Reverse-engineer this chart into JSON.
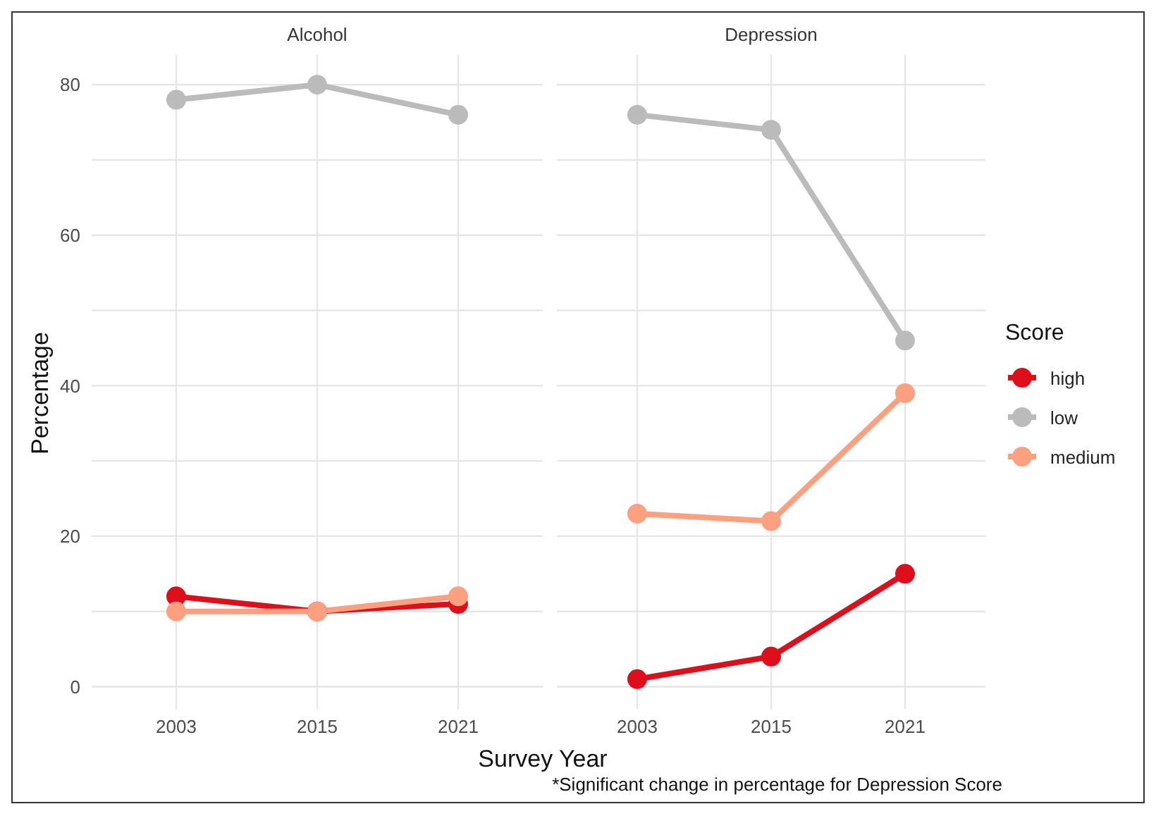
{
  "chart_data": [
    {
      "type": "line",
      "title": "Alcohol",
      "xlabel": "Survey Year",
      "ylabel": "Percentage",
      "categories": [
        "2003",
        "2015",
        "2021"
      ],
      "series": [
        {
          "color": "#de0f1b",
          "values": [
            12,
            10,
            11
          ]
        },
        {
          "color": "#bbbbbb",
          "values": [
            78,
            80,
            76
          ]
        },
        {
          "color": "#fca080",
          "values": [
            10,
            10,
            12
          ]
        }
      ],
      "ylim": [
        -2.95,
        83.95
      ],
      "yticks": [
        0,
        {
          "value": 10,
          "label": null
        },
        20,
        {
          "value": 30,
          "label": null
        },
        40,
        {
          "value": 50,
          "label": null
        },
        60,
        {
          "value": 70,
          "label": null
        },
        80
      ],
      "grid": true,
      "legend": false,
      "marker": "circle",
      "line_style": "solid"
    },
    {
      "type": "line",
      "title": "Depression",
      "categories": [
        "2003",
        "2015",
        "2021"
      ],
      "series": [
        {
          "name": "high",
          "color": "#de0f1b",
          "values": [
            1,
            4,
            15
          ]
        },
        {
          "name": "low",
          "color": "#bbbbbb",
          "values": [
            76,
            74,
            46
          ]
        },
        {
          "name": "medium",
          "color": "#fca080",
          "values": [
            23,
            22,
            39
          ]
        }
      ],
      "ylim": [
        -2.95,
        83.95
      ],
      "yticks": [
        0,
        {
          "value": 10,
          "label": null
        },
        20,
        {
          "value": 30,
          "label": null
        },
        40,
        {
          "value": 50,
          "label": null
        },
        60,
        {
          "value": 70,
          "label": null
        },
        80
      ],
      "grid": true,
      "legend": "right",
      "legend_title": "Score",
      "tick_labels": "x",
      "marker": "circle",
      "line_style": "solid",
      "annotations": [
        "*Significant change in percentage for Depression Score"
      ]
    }
  ]
}
